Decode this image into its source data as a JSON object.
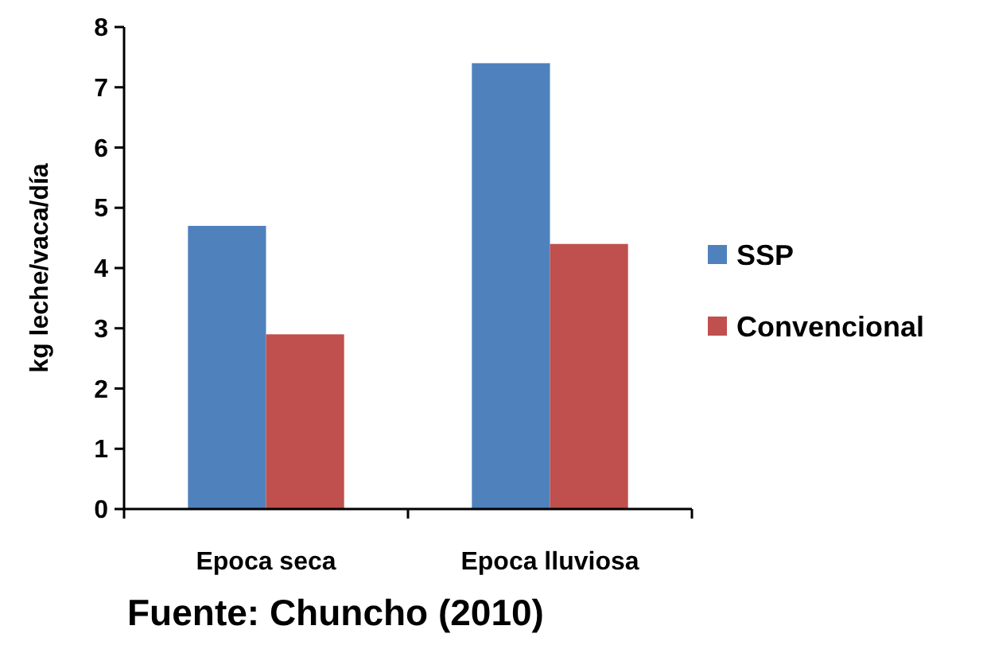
{
  "chart_data": {
    "type": "bar",
    "ylabel": "kg leche/vaca/día",
    "categories": [
      "Epoca seca",
      "Epoca lluviosa"
    ],
    "series": [
      {
        "name": "SSP",
        "color": "#4f81bd",
        "values": [
          4.7,
          7.4
        ]
      },
      {
        "name": "Convencional",
        "color": "#c0504d",
        "values": [
          2.9,
          4.4
        ]
      }
    ],
    "ylim": [
      0,
      8
    ],
    "yticks": [
      0,
      1,
      2,
      3,
      4,
      5,
      6,
      7,
      8
    ],
    "grid": false,
    "legend": "right",
    "annotations": [
      "Fuente: Chuncho (2010)"
    ]
  }
}
